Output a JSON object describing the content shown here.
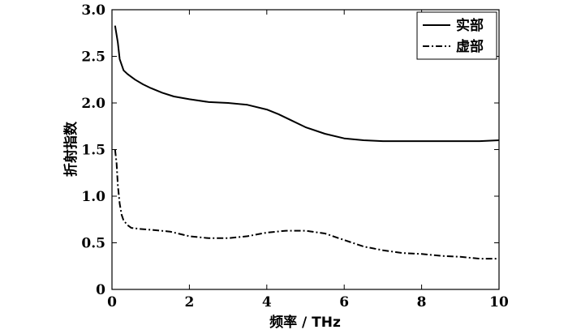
{
  "chart_data": {
    "type": "line",
    "title": "",
    "xlabel": "频率 / THz",
    "ylabel": "折射指数",
    "xlim": [
      0,
      10
    ],
    "ylim": [
      0,
      3.0
    ],
    "x_ticks": [
      "0",
      "2",
      "4",
      "6",
      "8",
      "10"
    ],
    "y_ticks": [
      "0",
      "0.5",
      "1.0",
      "1.5",
      "2.0",
      "2.5",
      "3.0"
    ],
    "grid": false,
    "legend_position": "top-right",
    "series": [
      {
        "name": "实部",
        "style": "solid",
        "color": "#000000",
        "x": [
          0.08,
          0.15,
          0.2,
          0.3,
          0.4,
          0.5,
          0.6,
          0.8,
          1.0,
          1.3,
          1.6,
          2.0,
          2.5,
          3.0,
          3.5,
          4.0,
          4.3,
          4.6,
          5.0,
          5.5,
          6.0,
          6.5,
          7.0,
          7.5,
          8.0,
          8.5,
          9.0,
          9.5,
          10.0
        ],
        "y": [
          2.83,
          2.65,
          2.47,
          2.35,
          2.31,
          2.28,
          2.25,
          2.2,
          2.16,
          2.11,
          2.07,
          2.04,
          2.01,
          2.0,
          1.98,
          1.93,
          1.88,
          1.82,
          1.74,
          1.67,
          1.62,
          1.6,
          1.59,
          1.59,
          1.59,
          1.59,
          1.59,
          1.59,
          1.6
        ]
      },
      {
        "name": "虚部",
        "style": "dash-dot",
        "color": "#000000",
        "x": [
          0.08,
          0.12,
          0.15,
          0.2,
          0.25,
          0.3,
          0.4,
          0.5,
          0.7,
          1.0,
          1.5,
          2.0,
          2.5,
          3.0,
          3.5,
          4.0,
          4.5,
          5.0,
          5.5,
          6.0,
          6.5,
          7.0,
          7.5,
          8.0,
          8.5,
          9.0,
          9.5,
          10.0
        ],
        "y": [
          1.5,
          1.35,
          1.12,
          0.92,
          0.8,
          0.74,
          0.69,
          0.66,
          0.65,
          0.64,
          0.62,
          0.57,
          0.55,
          0.55,
          0.57,
          0.61,
          0.63,
          0.63,
          0.6,
          0.53,
          0.46,
          0.42,
          0.39,
          0.38,
          0.36,
          0.35,
          0.33,
          0.33
        ]
      }
    ]
  }
}
